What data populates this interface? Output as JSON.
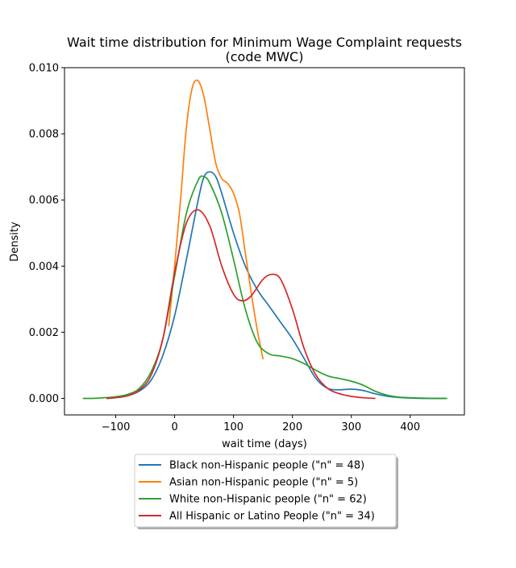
{
  "chart_data": {
    "type": "line",
    "title_line1": "Wait time distribution  for Minimum Wage Complaint requests",
    "title_line2": "(code MWC)",
    "xlabel": "wait time (days)",
    "ylabel": "Density",
    "xlim": [
      -187,
      492
    ],
    "ylim": [
      -0.0005,
      0.01
    ],
    "xticks": [
      -100,
      0,
      100,
      200,
      300,
      400
    ],
    "xtick_labels": [
      "−100",
      "0",
      "100",
      "200",
      "300",
      "400"
    ],
    "yticks": [
      0.0,
      0.002,
      0.004,
      0.006,
      0.008,
      0.01
    ],
    "ytick_labels": [
      "0.000",
      "0.002",
      "0.004",
      "0.006",
      "0.008",
      "0.010"
    ],
    "grid": false,
    "legend_position": "bottom-center",
    "series": [
      {
        "name": "Black non-Hispanic people (\"n\" = 48)",
        "color": "#1f77b4",
        "points": [
          [
            -115,
            0.0
          ],
          [
            -100,
            3e-05
          ],
          [
            -80,
            8e-05
          ],
          [
            -60,
            0.00022
          ],
          [
            -40,
            0.00055
          ],
          [
            -20,
            0.0013
          ],
          [
            0,
            0.0025
          ],
          [
            20,
            0.0042
          ],
          [
            40,
            0.006
          ],
          [
            50,
            0.0067
          ],
          [
            60,
            0.00685
          ],
          [
            70,
            0.0067
          ],
          [
            80,
            0.0062
          ],
          [
            100,
            0.005
          ],
          [
            120,
            0.004
          ],
          [
            140,
            0.0033
          ],
          [
            160,
            0.0028
          ],
          [
            180,
            0.0023
          ],
          [
            200,
            0.0018
          ],
          [
            220,
            0.0012
          ],
          [
            240,
            0.0006
          ],
          [
            260,
            0.0003
          ],
          [
            280,
            0.00026
          ],
          [
            300,
            0.00028
          ],
          [
            320,
            0.00024
          ],
          [
            340,
            0.00014
          ],
          [
            360,
            7e-05
          ],
          [
            380,
            3e-05
          ],
          [
            400,
            1e-05
          ],
          [
            420,
            0.0
          ],
          [
            440,
            0.0
          ],
          [
            460,
            0.0
          ]
        ]
      },
      {
        "name": "Asian non-Hispanic people (\"n\" = 5)",
        "color": "#ff7f0e",
        "points": [
          [
            -10,
            0.0022
          ],
          [
            0,
            0.004
          ],
          [
            10,
            0.006
          ],
          [
            20,
            0.0082
          ],
          [
            30,
            0.0094
          ],
          [
            40,
            0.0096
          ],
          [
            50,
            0.0091
          ],
          [
            60,
            0.0081
          ],
          [
            70,
            0.0071
          ],
          [
            80,
            0.00665
          ],
          [
            90,
            0.0065
          ],
          [
            100,
            0.0062
          ],
          [
            110,
            0.0056
          ],
          [
            120,
            0.0044
          ],
          [
            130,
            0.0032
          ],
          [
            140,
            0.0021
          ],
          [
            150,
            0.0012
          ]
        ]
      },
      {
        "name": "White non-Hispanic people (\"n\" = 62)",
        "color": "#2ca02c",
        "points": [
          [
            -155,
            0.0
          ],
          [
            -140,
            0.0
          ],
          [
            -120,
            2e-05
          ],
          [
            -100,
            5e-05
          ],
          [
            -80,
            0.00012
          ],
          [
            -60,
            0.0003
          ],
          [
            -40,
            0.0008
          ],
          [
            -20,
            0.0018
          ],
          [
            0,
            0.0037
          ],
          [
            20,
            0.0056
          ],
          [
            40,
            0.0066
          ],
          [
            50,
            0.0067
          ],
          [
            60,
            0.0065
          ],
          [
            80,
            0.0056
          ],
          [
            100,
            0.0042
          ],
          [
            120,
            0.0027
          ],
          [
            140,
            0.0017
          ],
          [
            160,
            0.00135
          ],
          [
            180,
            0.00128
          ],
          [
            200,
            0.0012
          ],
          [
            220,
            0.00105
          ],
          [
            240,
            0.00085
          ],
          [
            260,
            0.00068
          ],
          [
            280,
            0.0006
          ],
          [
            300,
            0.00052
          ],
          [
            320,
            0.0004
          ],
          [
            340,
            0.00022
          ],
          [
            360,
            0.0001
          ],
          [
            380,
            4e-05
          ],
          [
            400,
            2e-05
          ],
          [
            420,
            1e-05
          ],
          [
            440,
            0.0
          ],
          [
            462,
            0.0
          ]
        ]
      },
      {
        "name": "All Hispanic or Latino People (\"n\" = 34)",
        "color": "#d62728",
        "points": [
          [
            -115,
            0.0
          ],
          [
            -100,
            2e-05
          ],
          [
            -80,
            8e-05
          ],
          [
            -60,
            0.00025
          ],
          [
            -40,
            0.0007
          ],
          [
            -20,
            0.0018
          ],
          [
            0,
            0.0038
          ],
          [
            20,
            0.0053
          ],
          [
            40,
            0.0057
          ],
          [
            60,
            0.0052
          ],
          [
            80,
            0.004
          ],
          [
            100,
            0.00315
          ],
          [
            115,
            0.00295
          ],
          [
            130,
            0.0031
          ],
          [
            150,
            0.0036
          ],
          [
            165,
            0.00375
          ],
          [
            180,
            0.0036
          ],
          [
            200,
            0.0027
          ],
          [
            220,
            0.0015
          ],
          [
            240,
            0.0007
          ],
          [
            260,
            0.0003
          ],
          [
            280,
            0.00014
          ],
          [
            300,
            6e-05
          ],
          [
            320,
            2e-05
          ],
          [
            340,
            0.0
          ]
        ]
      }
    ]
  }
}
